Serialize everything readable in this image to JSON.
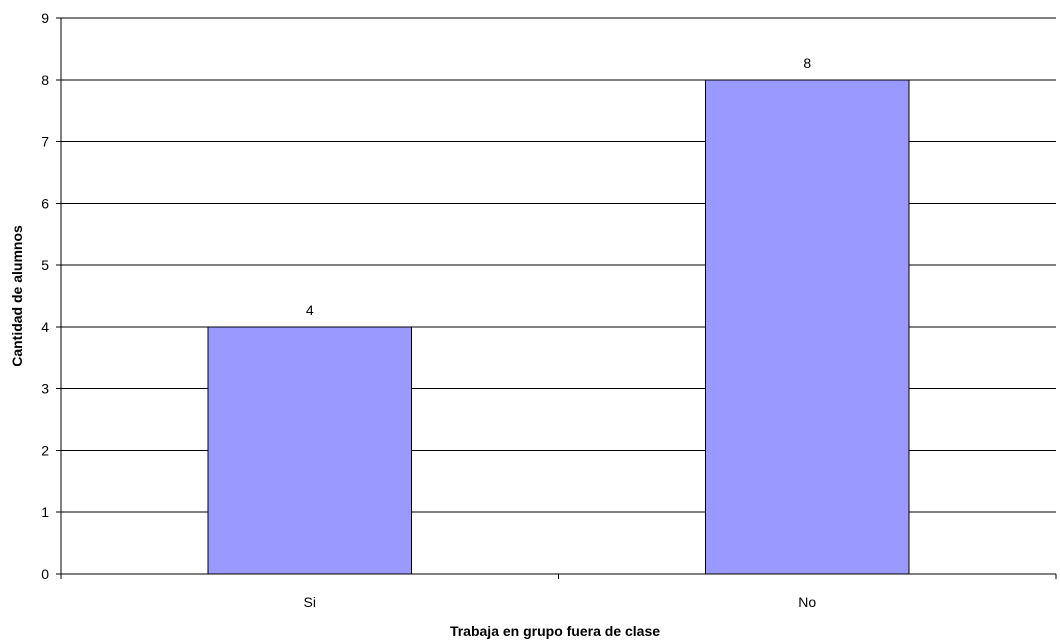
{
  "chart_data": {
    "type": "bar",
    "categories": [
      "Si",
      "No"
    ],
    "values": [
      4,
      8
    ],
    "data_labels": [
      "4",
      "8"
    ],
    "title": "",
    "xlabel": "Trabaja en grupo fuera de clase",
    "ylabel": "Cantidad de alumnos",
    "ylim": [
      0,
      9
    ],
    "yticks": [
      "0",
      "1",
      "2",
      "3",
      "4",
      "5",
      "6",
      "7",
      "8",
      "9"
    ],
    "grid": true,
    "legend": "none",
    "colors": {
      "bar": "#9999ff",
      "bar_border": "#000000",
      "grid": "#000000",
      "axis": "#000000"
    }
  }
}
